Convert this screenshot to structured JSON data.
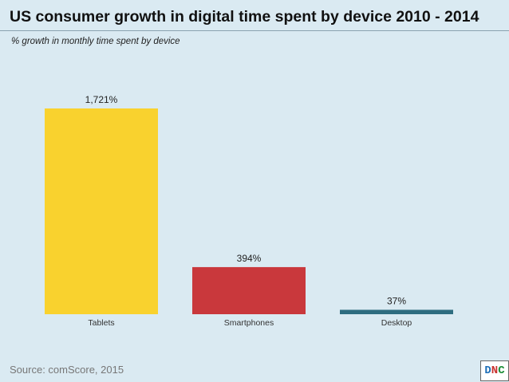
{
  "chart_data": {
    "type": "bar",
    "title": "US consumer growth in digital time spent by device 2010 - 2014",
    "subtitle": "% growth in monthly time spent by device",
    "categories": [
      "Tablets",
      "Smartphones",
      "Desktop"
    ],
    "values": [
      1721,
      394,
      37
    ],
    "value_labels": [
      "1,721%",
      "394%",
      "37%"
    ],
    "colors": [
      "#f9d22e",
      "#c9383c",
      "#2e6d80"
    ],
    "xlabel": "",
    "ylabel": "",
    "ylim": [
      0,
      1721
    ],
    "grid": false,
    "legend": "none"
  },
  "footer": {
    "source": "Source: comScore, 2015"
  },
  "logo": {
    "letters": [
      "D",
      "N",
      "C"
    ]
  }
}
